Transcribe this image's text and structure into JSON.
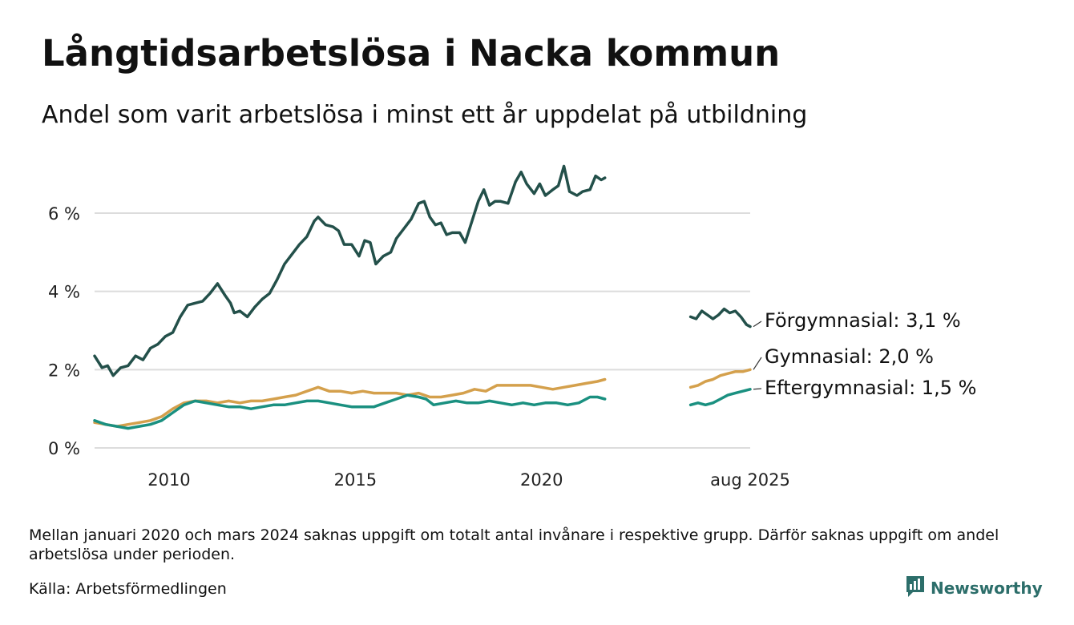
{
  "title": "Långtidsarbetslösa i Nacka kommun",
  "subtitle": "Andel som varit arbetslösa i minst ett år uppdelat på utbildning",
  "note": "Mellan januari 2020 och mars 2024 saknas uppgift om totalt antal invånare i respektive grupp. Därför saknas uppgift om andel arbetslösa under perioden.",
  "source": "Källa: Arbetsförmedlingen",
  "brand": {
    "name": "Newsworthy",
    "icon": "bar-chart-logo",
    "color": "#2c6e6a"
  },
  "chart_data": {
    "type": "line",
    "title": "Långtidsarbetslösa i Nacka kommun",
    "subtitle": "Andel som varit arbetslösa i minst ett år uppdelat på utbildning",
    "xlabel": "",
    "ylabel": "",
    "ylim": [
      0,
      7.5
    ],
    "yticks": [
      {
        "value": 0,
        "label": "0 %"
      },
      {
        "value": 2,
        "label": "2 %"
      },
      {
        "value": 4,
        "label": "4 %"
      },
      {
        "value": 6,
        "label": "6 %"
      }
    ],
    "xlim": [
      2008.0,
      2025.6
    ],
    "xticks": [
      {
        "value": 2010,
        "label": "2010"
      },
      {
        "value": 2015,
        "label": "2015"
      },
      {
        "value": 2020,
        "label": "2020"
      },
      {
        "value": 2025.6,
        "label": "aug 2025"
      }
    ],
    "grid": "horizontal",
    "legend": "direct labels at line ends (right)",
    "series": [
      {
        "name": "Förgymnasial",
        "end_label": "Förgymnasial: 3,1 %",
        "color": "#23504a",
        "segments": [
          [
            [
              2008.0,
              2.35
            ],
            [
              2008.2,
              2.05
            ],
            [
              2008.35,
              2.1
            ],
            [
              2008.5,
              1.85
            ],
            [
              2008.7,
              2.05
            ],
            [
              2008.9,
              2.1
            ],
            [
              2009.1,
              2.35
            ],
            [
              2009.3,
              2.25
            ],
            [
              2009.5,
              2.55
            ],
            [
              2009.7,
              2.65
            ],
            [
              2009.9,
              2.85
            ],
            [
              2010.1,
              2.95
            ],
            [
              2010.3,
              3.35
            ],
            [
              2010.5,
              3.65
            ],
            [
              2010.7,
              3.7
            ],
            [
              2010.9,
              3.75
            ],
            [
              2011.1,
              3.95
            ],
            [
              2011.3,
              4.2
            ],
            [
              2011.5,
              3.9
            ],
            [
              2011.65,
              3.7
            ],
            [
              2011.75,
              3.45
            ],
            [
              2011.9,
              3.5
            ],
            [
              2012.1,
              3.35
            ],
            [
              2012.3,
              3.6
            ],
            [
              2012.5,
              3.8
            ],
            [
              2012.7,
              3.95
            ],
            [
              2012.9,
              4.3
            ],
            [
              2013.1,
              4.7
            ],
            [
              2013.3,
              4.95
            ],
            [
              2013.5,
              5.2
            ],
            [
              2013.7,
              5.4
            ],
            [
              2013.9,
              5.8
            ],
            [
              2014.0,
              5.9
            ],
            [
              2014.2,
              5.7
            ],
            [
              2014.4,
              5.65
            ],
            [
              2014.55,
              5.55
            ],
            [
              2014.7,
              5.2
            ],
            [
              2014.9,
              5.2
            ],
            [
              2015.1,
              4.9
            ],
            [
              2015.25,
              5.3
            ],
            [
              2015.4,
              5.25
            ],
            [
              2015.55,
              4.7
            ],
            [
              2015.75,
              4.9
            ],
            [
              2015.95,
              5.0
            ],
            [
              2016.1,
              5.35
            ],
            [
              2016.3,
              5.6
            ],
            [
              2016.5,
              5.85
            ],
            [
              2016.7,
              6.25
            ],
            [
              2016.85,
              6.3
            ],
            [
              2017.0,
              5.9
            ],
            [
              2017.15,
              5.7
            ],
            [
              2017.3,
              5.75
            ],
            [
              2017.45,
              5.45
            ],
            [
              2017.6,
              5.5
            ],
            [
              2017.8,
              5.5
            ],
            [
              2017.95,
              5.25
            ],
            [
              2018.1,
              5.7
            ],
            [
              2018.3,
              6.3
            ],
            [
              2018.45,
              6.6
            ],
            [
              2018.6,
              6.2
            ],
            [
              2018.75,
              6.3
            ],
            [
              2018.9,
              6.3
            ],
            [
              2019.1,
              6.25
            ],
            [
              2019.3,
              6.8
            ],
            [
              2019.45,
              7.05
            ],
            [
              2019.6,
              6.75
            ],
            [
              2019.8,
              6.5
            ],
            [
              2019.95,
              6.75
            ],
            [
              2020.1,
              6.45
            ],
            [
              2020.3,
              6.6
            ],
            [
              2020.45,
              6.7
            ],
            [
              2020.6,
              7.2
            ],
            [
              2020.75,
              6.55
            ],
            [
              2020.95,
              6.45
            ],
            [
              2021.1,
              6.55
            ],
            [
              2021.3,
              6.6
            ],
            [
              2021.45,
              6.95
            ],
            [
              2021.6,
              6.85
            ],
            [
              2021.7,
              6.9
            ]
          ],
          [
            [
              2024.0,
              3.35
            ],
            [
              2024.15,
              3.3
            ],
            [
              2024.3,
              3.5
            ],
            [
              2024.45,
              3.4
            ],
            [
              2024.6,
              3.3
            ],
            [
              2024.75,
              3.4
            ],
            [
              2024.9,
              3.55
            ],
            [
              2025.05,
              3.45
            ],
            [
              2025.2,
              3.5
            ],
            [
              2025.35,
              3.35
            ],
            [
              2025.5,
              3.15
            ],
            [
              2025.6,
              3.1
            ]
          ]
        ]
      },
      {
        "name": "Gymnasial",
        "end_label": "Gymnasial: 2,0 %",
        "color": "#d4a04c",
        "segments": [
          [
            [
              2008.0,
              0.65
            ],
            [
              2008.3,
              0.6
            ],
            [
              2008.6,
              0.55
            ],
            [
              2008.9,
              0.6
            ],
            [
              2009.2,
              0.65
            ],
            [
              2009.5,
              0.7
            ],
            [
              2009.8,
              0.8
            ],
            [
              2010.1,
              1.0
            ],
            [
              2010.4,
              1.15
            ],
            [
              2010.7,
              1.2
            ],
            [
              2011.0,
              1.2
            ],
            [
              2011.3,
              1.15
            ],
            [
              2011.6,
              1.2
            ],
            [
              2011.9,
              1.15
            ],
            [
              2012.2,
              1.2
            ],
            [
              2012.5,
              1.2
            ],
            [
              2012.8,
              1.25
            ],
            [
              2013.1,
              1.3
            ],
            [
              2013.4,
              1.35
            ],
            [
              2013.7,
              1.45
            ],
            [
              2014.0,
              1.55
            ],
            [
              2014.3,
              1.45
            ],
            [
              2014.6,
              1.45
            ],
            [
              2014.9,
              1.4
            ],
            [
              2015.2,
              1.45
            ],
            [
              2015.5,
              1.4
            ],
            [
              2015.8,
              1.4
            ],
            [
              2016.1,
              1.4
            ],
            [
              2016.4,
              1.35
            ],
            [
              2016.7,
              1.4
            ],
            [
              2017.0,
              1.3
            ],
            [
              2017.3,
              1.3
            ],
            [
              2017.6,
              1.35
            ],
            [
              2017.9,
              1.4
            ],
            [
              2018.2,
              1.5
            ],
            [
              2018.5,
              1.45
            ],
            [
              2018.8,
              1.6
            ],
            [
              2019.1,
              1.6
            ],
            [
              2019.4,
              1.6
            ],
            [
              2019.7,
              1.6
            ],
            [
              2020.0,
              1.55
            ],
            [
              2020.3,
              1.5
            ],
            [
              2020.6,
              1.55
            ],
            [
              2020.9,
              1.6
            ],
            [
              2021.2,
              1.65
            ],
            [
              2021.5,
              1.7
            ],
            [
              2021.7,
              1.75
            ]
          ],
          [
            [
              2024.0,
              1.55
            ],
            [
              2024.2,
              1.6
            ],
            [
              2024.4,
              1.7
            ],
            [
              2024.6,
              1.75
            ],
            [
              2024.8,
              1.85
            ],
            [
              2025.0,
              1.9
            ],
            [
              2025.2,
              1.95
            ],
            [
              2025.4,
              1.95
            ],
            [
              2025.6,
              2.0
            ]
          ]
        ]
      },
      {
        "name": "Eftergymnasial",
        "end_label": "Eftergymnasial: 1,5 %",
        "color": "#1a9080",
        "segments": [
          [
            [
              2008.0,
              0.7
            ],
            [
              2008.3,
              0.6
            ],
            [
              2008.6,
              0.55
            ],
            [
              2008.9,
              0.5
            ],
            [
              2009.2,
              0.55
            ],
            [
              2009.5,
              0.6
            ],
            [
              2009.8,
              0.7
            ],
            [
              2010.1,
              0.9
            ],
            [
              2010.4,
              1.1
            ],
            [
              2010.7,
              1.2
            ],
            [
              2011.0,
              1.15
            ],
            [
              2011.3,
              1.1
            ],
            [
              2011.6,
              1.05
            ],
            [
              2011.9,
              1.05
            ],
            [
              2012.2,
              1.0
            ],
            [
              2012.5,
              1.05
            ],
            [
              2012.8,
              1.1
            ],
            [
              2013.1,
              1.1
            ],
            [
              2013.4,
              1.15
            ],
            [
              2013.7,
              1.2
            ],
            [
              2014.0,
              1.2
            ],
            [
              2014.3,
              1.15
            ],
            [
              2014.6,
              1.1
            ],
            [
              2014.9,
              1.05
            ],
            [
              2015.2,
              1.05
            ],
            [
              2015.5,
              1.05
            ],
            [
              2015.8,
              1.15
            ],
            [
              2016.1,
              1.25
            ],
            [
              2016.4,
              1.35
            ],
            [
              2016.7,
              1.3
            ],
            [
              2016.9,
              1.25
            ],
            [
              2017.1,
              1.1
            ],
            [
              2017.4,
              1.15
            ],
            [
              2017.7,
              1.2
            ],
            [
              2018.0,
              1.15
            ],
            [
              2018.3,
              1.15
            ],
            [
              2018.6,
              1.2
            ],
            [
              2018.9,
              1.15
            ],
            [
              2019.2,
              1.1
            ],
            [
              2019.5,
              1.15
            ],
            [
              2019.8,
              1.1
            ],
            [
              2020.1,
              1.15
            ],
            [
              2020.4,
              1.15
            ],
            [
              2020.7,
              1.1
            ],
            [
              2021.0,
              1.15
            ],
            [
              2021.3,
              1.3
            ],
            [
              2021.5,
              1.3
            ],
            [
              2021.7,
              1.25
            ]
          ],
          [
            [
              2024.0,
              1.1
            ],
            [
              2024.2,
              1.15
            ],
            [
              2024.4,
              1.1
            ],
            [
              2024.6,
              1.15
            ],
            [
              2024.8,
              1.25
            ],
            [
              2025.0,
              1.35
            ],
            [
              2025.2,
              1.4
            ],
            [
              2025.4,
              1.45
            ],
            [
              2025.6,
              1.5
            ]
          ]
        ]
      }
    ]
  }
}
